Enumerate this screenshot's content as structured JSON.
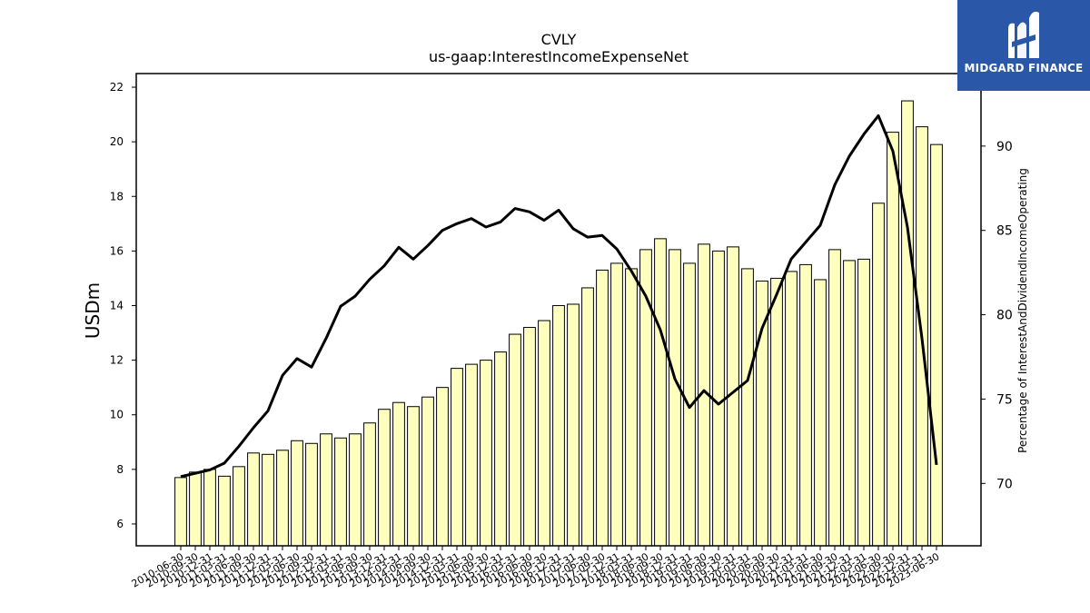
{
  "chart_data": {
    "type": "bar",
    "title": "CVLY",
    "subtitle": "us-gaap:InterestIncomeExpenseNet",
    "ylabel": "USDm",
    "y2label": "Percentage of InterestAndDividendIncomeOperating",
    "ylim": [
      5.2,
      22.5
    ],
    "y2lim": [
      66.3,
      94.3
    ],
    "yticks": [
      6,
      8,
      10,
      12,
      14,
      16,
      18,
      20,
      22
    ],
    "y2ticks": [
      70,
      75,
      80,
      85,
      90
    ],
    "bar_color": "#ffffc0",
    "line_color": "#000000",
    "categories": [
      "2010-06-30",
      "2010-09-30",
      "2010-12-31",
      "2011-03-31",
      "2011-06-30",
      "2011-09-30",
      "2011-12-31",
      "2012-03-31",
      "2012-06-30",
      "2012-09-30",
      "2012-12-31",
      "2013-03-31",
      "2013-06-30",
      "2013-09-30",
      "2013-12-31",
      "2014-03-31",
      "2014-06-30",
      "2014-09-30",
      "2014-12-31",
      "2015-03-31",
      "2015-06-30",
      "2015-09-30",
      "2015-12-31",
      "2016-03-31",
      "2016-06-30",
      "2016-09-30",
      "2016-12-31",
      "2017-03-31",
      "2017-06-30",
      "2017-09-30",
      "2017-12-31",
      "2018-03-31",
      "2018-06-30",
      "2018-09-30",
      "2018-12-31",
      "2019-03-31",
      "2019-06-30",
      "2019-09-30",
      "2019-12-31",
      "2020-03-31",
      "2020-06-30",
      "2020-09-30",
      "2020-12-31",
      "2021-03-31",
      "2021-06-30",
      "2021-09-30",
      "2021-12-31",
      "2022-03-31",
      "2022-06-30",
      "2022-09-30",
      "2022-12-31",
      "2023-03-31",
      "2023-06-30"
    ],
    "xtick_labels": [
      "2010-06-30",
      "2010-09-30",
      "2010-12-31",
      "2011-03-31",
      "2011-06-30",
      "2011-09-30",
      "2011-12-31",
      "2012-03-31",
      "2012-06-30",
      "2012-09-30",
      "2012-12-31",
      "2013-03-31",
      "2013-06-30",
      "2013-09-30",
      "2013-12-31",
      "2014-03-31",
      "2014-06-30",
      "2014-09-30",
      "2014-12-31",
      "2015-03-31",
      "2015-06-30",
      "2015-09-30",
      "2015-12-31",
      "2016-03-31",
      "2016-06-30",
      "2016-09-30",
      "2016-12-31",
      "2017-03-31",
      "2017-06-30",
      "2017-09-30",
      "2017-12-31",
      "2018-03-31",
      "2018-06-30",
      "2018-09-30",
      "2018-12-31",
      "2019-03-31",
      "2019-06-30",
      "2019-09-30",
      "2019-12-31",
      "2020-03-31",
      "2020-06-30",
      "2020-09-30",
      "2020-12-31",
      "2021-03-31",
      "2021-06-30",
      "2021-09-30",
      "2021-12-31",
      "2022-03-31",
      "2022-06-30",
      "2022-09-30",
      "2022-12-31",
      "2023-03-31",
      "2023-06-30"
    ],
    "series": [
      {
        "type": "bar",
        "axis": "left",
        "values": [
          7.7,
          7.9,
          8.0,
          7.75,
          8.1,
          8.6,
          8.55,
          8.7,
          9.05,
          8.95,
          9.3,
          9.15,
          9.3,
          9.7,
          10.2,
          10.45,
          10.3,
          10.65,
          11.0,
          11.7,
          11.85,
          12.0,
          12.3,
          12.95,
          13.2,
          13.45,
          14.0,
          14.05,
          14.65,
          15.3,
          15.55,
          15.35,
          16.05,
          16.45,
          16.05,
          15.55,
          16.25,
          16.0,
          16.15,
          15.35,
          14.9,
          15.0,
          15.25,
          15.5,
          14.95,
          16.05,
          15.65,
          15.7,
          17.75,
          20.35,
          21.5,
          20.55,
          19.9
        ]
      },
      {
        "type": "line",
        "axis": "right",
        "values": [
          70.4,
          70.6,
          70.8,
          71.2,
          72.2,
          73.3,
          74.3,
          76.4,
          77.4,
          76.9,
          78.6,
          80.5,
          81.1,
          82.1,
          82.9,
          84.0,
          83.3,
          84.1,
          85.0,
          85.4,
          85.7,
          85.2,
          85.5,
          86.3,
          86.1,
          85.6,
          86.2,
          85.1,
          84.6,
          84.7,
          83.9,
          82.6,
          81.1,
          79.1,
          76.2,
          74.5,
          75.5,
          74.7,
          75.4,
          76.1,
          79.2,
          81.2,
          83.3,
          84.3,
          85.3,
          87.7,
          89.4,
          90.7,
          91.8,
          89.7,
          85.2,
          78.6,
          71.1
        ]
      }
    ]
  },
  "logo": {
    "text": "MIDGARD FINANCE",
    "background": "#2b57a8"
  }
}
